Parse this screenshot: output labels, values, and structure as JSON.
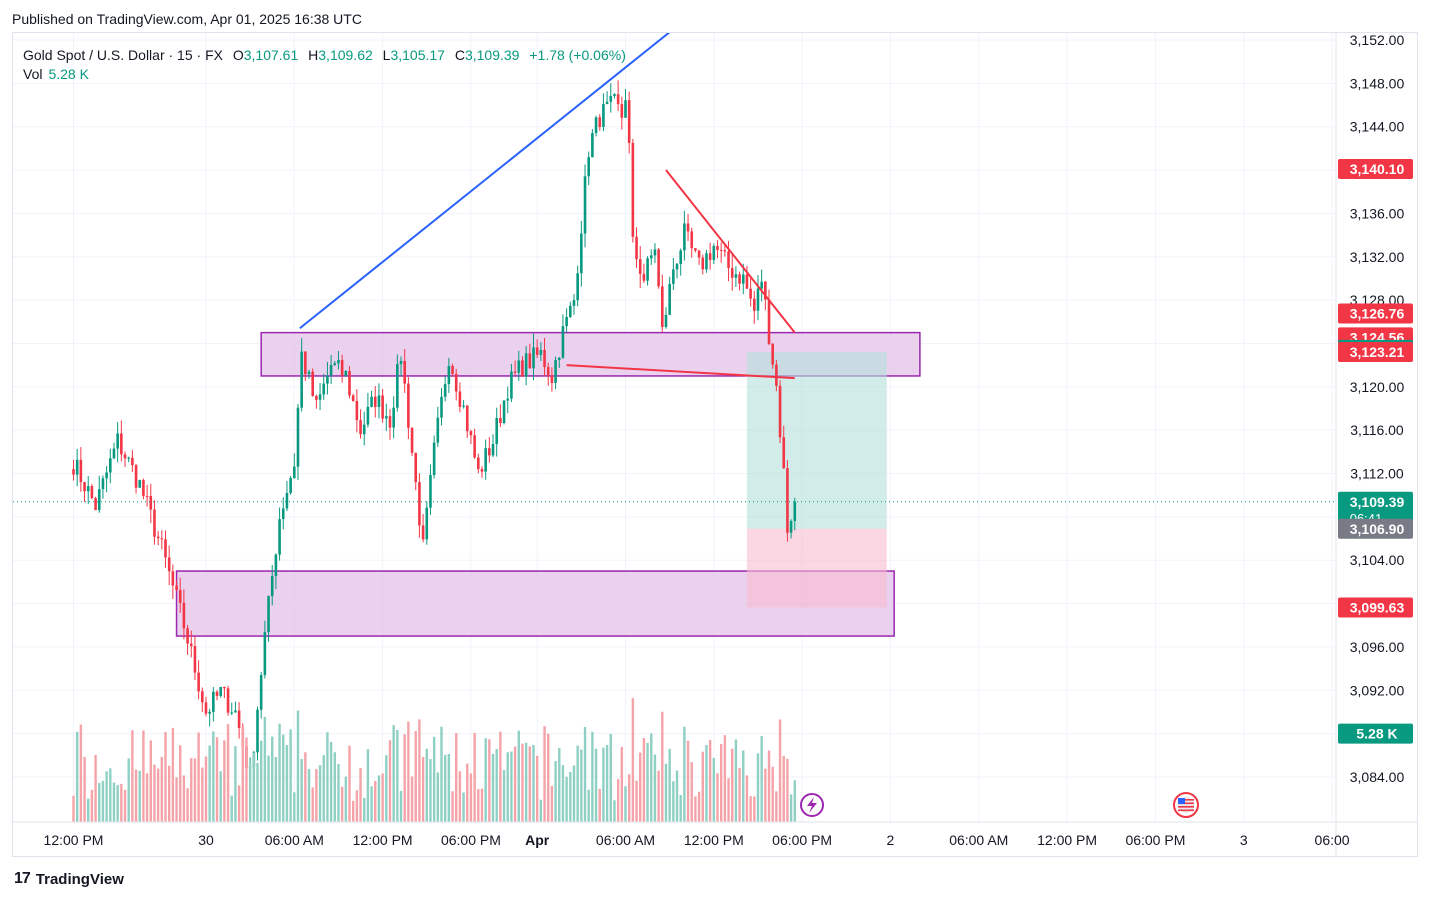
{
  "header": {
    "published": "Published on TradingView.com, Apr 01, 2025 16:38 UTC"
  },
  "legend": {
    "symbol": "Gold Spot / U.S. Dollar · 15 · FX",
    "o_label": "O",
    "o_value": "3,107.61",
    "h_label": "H",
    "h_value": "3,109.62",
    "l_label": "L",
    "l_value": "3,105.17",
    "c_label": "C",
    "c_value": "3,109.39",
    "change": "+1.78 (+0.06%)",
    "vol_label": "Vol",
    "vol_value": "5.28 K"
  },
  "footer": {
    "brand": "TradingView"
  },
  "colors": {
    "up": "#089981",
    "down": "#f23645",
    "vol_up": "#8fd0c4",
    "vol_down": "#f5a3a9",
    "zone_fill": "#e1bee7",
    "zone_stroke": "#9c27b0",
    "trend_blue": "#2962ff",
    "trend_red": "#f23645",
    "target_fill": "#b2dfdb",
    "stop_fill": "#f8bbd0"
  },
  "chart_data": {
    "type": "candlestick",
    "y_axis": {
      "range": [
        3084.0,
        3152.0
      ],
      "ticks": [
        "3,152.00",
        "3,148.00",
        "3,144.00",
        "3,140.00",
        "3,136.00",
        "3,132.00",
        "3,128.00",
        "3,124.00",
        "3,120.00",
        "3,116.00",
        "3,112.00",
        "3,108.00",
        "3,104.00",
        "3,100.00",
        "3,096.00",
        "3,092.00",
        "3,088.00",
        "3,084.00"
      ],
      "tick_values": [
        3152,
        3148,
        3144,
        3140,
        3136,
        3132,
        3128,
        3124,
        3120,
        3116,
        3112,
        3108,
        3104,
        3100,
        3096,
        3092,
        3088,
        3084
      ]
    },
    "x_axis": {
      "ticks": [
        {
          "label": "12:00 PM",
          "t": 0,
          "bold": false
        },
        {
          "label": "30",
          "t": 36,
          "bold": false
        },
        {
          "label": "06:00 AM",
          "t": 60,
          "bold": false
        },
        {
          "label": "12:00 PM",
          "t": 84,
          "bold": false
        },
        {
          "label": "06:00 PM",
          "t": 108,
          "bold": false
        },
        {
          "label": "Apr",
          "t": 126,
          "bold": true
        },
        {
          "label": "06:00 AM",
          "t": 150,
          "bold": false
        },
        {
          "label": "12:00 PM",
          "t": 174,
          "bold": false
        },
        {
          "label": "06:00 PM",
          "t": 198,
          "bold": false
        },
        {
          "label": "2",
          "t": 222,
          "bold": false
        },
        {
          "label": "06:00 AM",
          "t": 246,
          "bold": false
        },
        {
          "label": "12:00 PM",
          "t": 270,
          "bold": false
        },
        {
          "label": "06:00 PM",
          "t": 294,
          "bold": false
        },
        {
          "label": "3",
          "t": 318,
          "bold": false
        },
        {
          "label": "06:00",
          "t": 342,
          "bold": false
        }
      ]
    },
    "price_labels": [
      {
        "text": "3,140.10",
        "price": 3140.1,
        "color": "#f23645"
      },
      {
        "text": "3,126.76",
        "price": 3126.76,
        "color": "#f23645"
      },
      {
        "text": "3,124.56",
        "price": 3124.56,
        "color": "#f23645"
      },
      {
        "text": "3,123.41",
        "price": 3123.41,
        "color": "#089981"
      },
      {
        "text": "3,123.21",
        "price": 3123.21,
        "color": "#f23645"
      },
      {
        "text": "3,109.39",
        "price": 3109.39,
        "color": "#089981",
        "sub": "06:41"
      },
      {
        "text": "3,106.90",
        "price": 3106.9,
        "color": "#787b86"
      },
      {
        "text": "3,099.63",
        "price": 3099.63,
        "color": "#f23645"
      },
      {
        "text": "5.28 K",
        "price": 3088.0,
        "color": "#089981"
      }
    ],
    "current_price": 3109.39,
    "zones": [
      {
        "name": "resistance-zone",
        "t_start": 51,
        "t_end": 230,
        "price_high": 3125.0,
        "price_low": 3121.0
      },
      {
        "name": "support-zone",
        "t_start": 28,
        "t_end": 223,
        "price_high": 3103.0,
        "price_low": 3097.0
      }
    ],
    "trendlines": [
      {
        "name": "rising-trendline",
        "color": "#2962ff",
        "t1": 61.5,
        "p1": 3125.4,
        "t2": 163,
        "p2": 3153.0
      },
      {
        "name": "falling-trendline",
        "color": "#f23645",
        "t1": 161,
        "p1": 3140.0,
        "t2": 196,
        "p2": 3125.0
      },
      {
        "name": "neckline",
        "color": "#f23645",
        "t1": 134,
        "p1": 3122.0,
        "t2": 196,
        "p2": 3120.8
      }
    ],
    "position": {
      "t_start": 183,
      "t_end": 221,
      "entry": 3106.9,
      "target": 3123.21,
      "stop": 3099.63
    },
    "keypoints": [
      [
        0,
        3113
      ],
      [
        6,
        3109
      ],
      [
        12,
        3115
      ],
      [
        18,
        3111
      ],
      [
        24,
        3105
      ],
      [
        30,
        3098
      ],
      [
        36,
        3090
      ],
      [
        40,
        3091.8
      ],
      [
        44,
        3090
      ],
      [
        48,
        3084
      ],
      [
        52,
        3097
      ],
      [
        56,
        3108
      ],
      [
        60,
        3113
      ],
      [
        62,
        3123
      ],
      [
        66,
        3118
      ],
      [
        70,
        3122
      ],
      [
        74,
        3121
      ],
      [
        78,
        3116
      ],
      [
        82,
        3119
      ],
      [
        86,
        3117
      ],
      [
        89,
        3123
      ],
      [
        93,
        3111
      ],
      [
        95,
        3105
      ],
      [
        98,
        3114
      ],
      [
        102,
        3123
      ],
      [
        106,
        3118
      ],
      [
        110,
        3112
      ],
      [
        114,
        3115
      ],
      [
        118,
        3120
      ],
      [
        122,
        3122
      ],
      [
        127,
        3123
      ],
      [
        130,
        3121
      ],
      [
        133,
        3125
      ],
      [
        136,
        3128
      ],
      [
        138,
        3135
      ],
      [
        140,
        3142
      ],
      [
        143,
        3145
      ],
      [
        147,
        3146
      ],
      [
        149,
        3145
      ],
      [
        150,
        3147
      ],
      [
        151,
        3142
      ],
      [
        152,
        3133
      ],
      [
        155,
        3130
      ],
      [
        158,
        3133
      ],
      [
        160,
        3125
      ],
      [
        163,
        3131
      ],
      [
        166,
        3134
      ],
      [
        170,
        3131
      ],
      [
        174,
        3133
      ],
      [
        178,
        3131
      ],
      [
        182,
        3130
      ],
      [
        185,
        3127
      ],
      [
        187,
        3130
      ],
      [
        189,
        3125
      ],
      [
        191,
        3120
      ],
      [
        193,
        3112
      ],
      [
        194,
        3107
      ],
      [
        196,
        3109.4
      ]
    ]
  }
}
